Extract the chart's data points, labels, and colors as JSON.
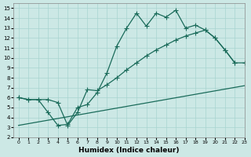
{
  "xlabel": "Humidex (Indice chaleur)",
  "xlim": [
    -0.5,
    23
  ],
  "ylim": [
    2,
    15.5
  ],
  "xticks": [
    0,
    1,
    2,
    3,
    4,
    5,
    6,
    7,
    8,
    9,
    10,
    11,
    12,
    13,
    14,
    15,
    16,
    17,
    18,
    19,
    20,
    21,
    22,
    23
  ],
  "yticks": [
    2,
    3,
    4,
    5,
    6,
    7,
    8,
    9,
    10,
    11,
    12,
    13,
    14,
    15
  ],
  "bg_color": "#cce8e5",
  "grid_color": "#a8d4d0",
  "line_color": "#1a6b5a",
  "curve1_x": [
    0,
    1,
    2,
    3,
    4,
    5,
    6,
    7,
    8,
    9,
    10,
    11,
    12,
    13,
    14,
    15,
    16,
    17,
    18,
    19,
    20,
    21,
    22
  ],
  "curve1_y": [
    6.0,
    5.8,
    5.8,
    4.5,
    3.2,
    3.3,
    5.0,
    5.3,
    6.5,
    8.5,
    11.2,
    13.0,
    14.5,
    13.2,
    14.5,
    14.1,
    14.8,
    13.0,
    13.3,
    12.8,
    12.0,
    10.8,
    9.5
  ],
  "curve2_x": [
    0,
    1,
    2,
    3,
    4,
    5,
    6,
    7,
    8,
    9,
    10,
    11,
    12,
    13,
    14,
    15,
    16,
    17,
    18,
    19,
    20,
    21,
    22,
    23
  ],
  "curve2_y": [
    6.0,
    5.8,
    5.8,
    5.8,
    5.5,
    3.2,
    4.5,
    6.8,
    6.7,
    7.3,
    8.0,
    8.8,
    9.5,
    10.2,
    10.8,
    11.3,
    11.8,
    12.2,
    12.5,
    12.8,
    12.0,
    10.8,
    9.5,
    9.5
  ],
  "curve3_x": [
    0,
    23
  ],
  "curve3_y": [
    3.2,
    7.2
  ],
  "ms": 2.5
}
